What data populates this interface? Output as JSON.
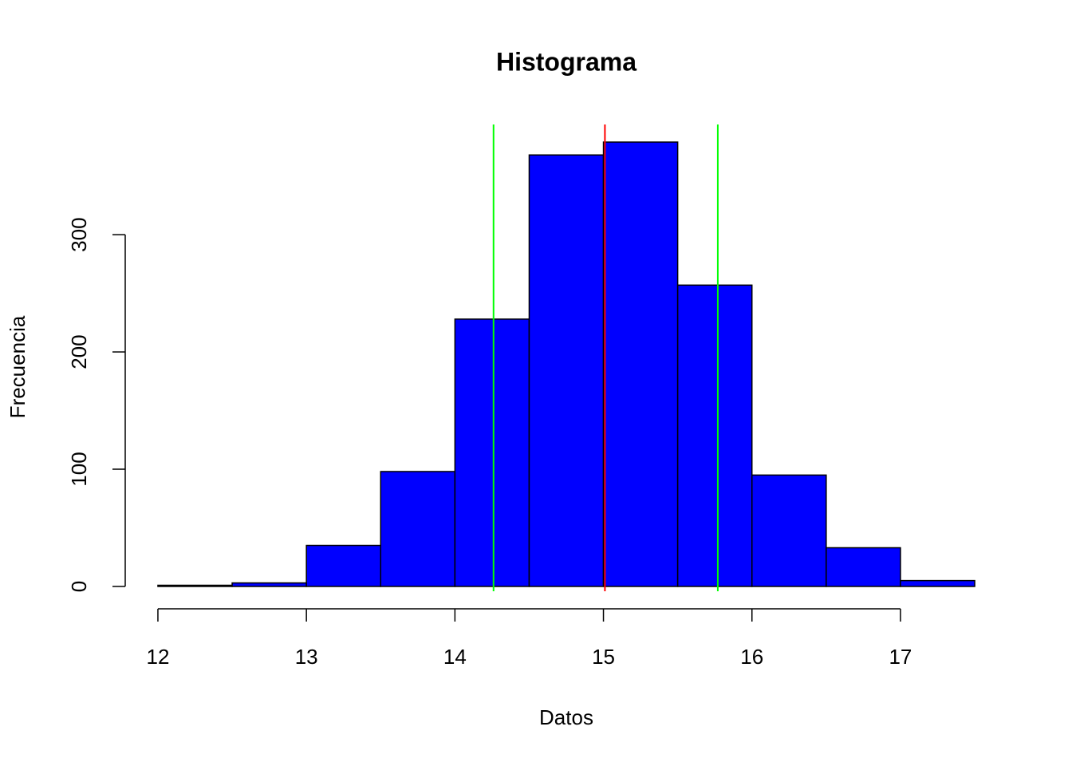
{
  "chart_data": {
    "type": "histogram",
    "title": "Histograma",
    "x_label": "Datos",
    "y_label": "Frecuencia",
    "bins": [
      12,
      12.5,
      13,
      13.5,
      14,
      14.5,
      15,
      15.5,
      16,
      16.5,
      17,
      17.5
    ],
    "values": [
      1,
      3,
      35,
      98,
      228,
      368,
      379,
      257,
      95,
      33,
      5
    ],
    "color": "#0000ff",
    "vlines": [
      {
        "value": 15.01,
        "color": "#ff0000"
      },
      {
        "value": 14.26,
        "color": "#00ff00"
      },
      {
        "value": 15.77,
        "color": "#00ff00"
      }
    ],
    "xlim": [
      11.78,
      17.72
    ],
    "ylim": [
      -15,
      394
    ],
    "xticks": [
      12,
      13,
      14,
      15,
      16,
      17
    ],
    "yticks": [
      0,
      100,
      200,
      300
    ]
  }
}
